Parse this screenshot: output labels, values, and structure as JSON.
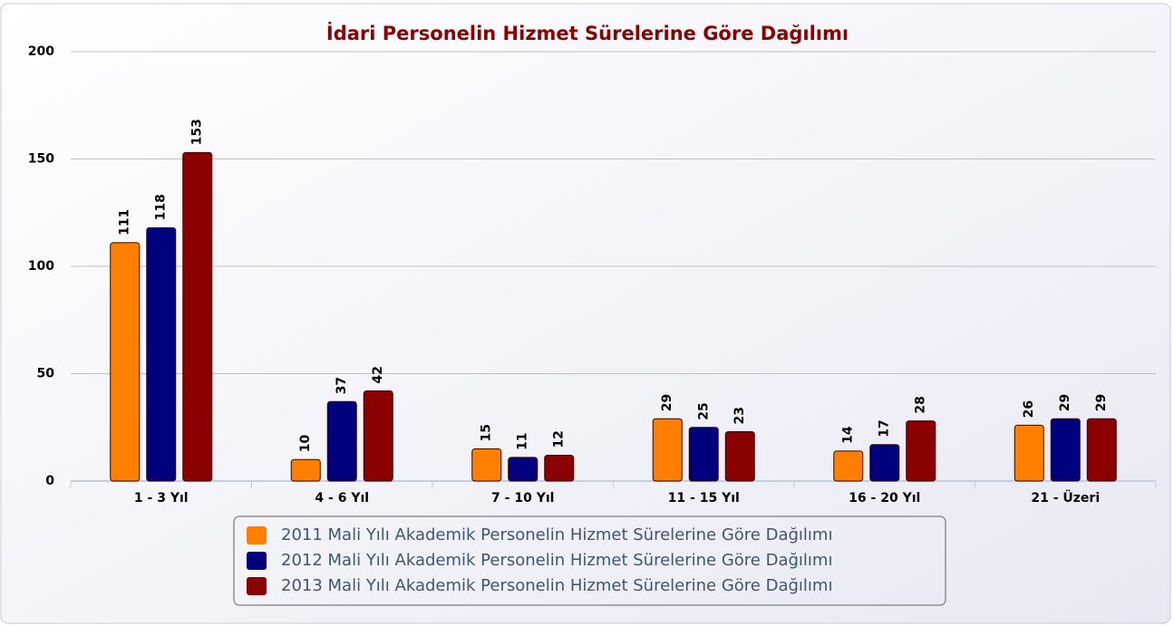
{
  "chart_data": {
    "type": "bar",
    "title": "İdari Personelin Hizmet Sürelerine Göre Dağılımı",
    "categories": [
      "1 - 3 Yıl",
      "4 - 6 Yıl",
      "7 - 10 Yıl",
      "11 - 15 Yıl",
      "16 - 20 Yıl",
      "21 - Üzeri"
    ],
    "series": [
      {
        "name": "2011 Mali Yılı Akademik Personelin Hizmet Sürelerine Göre Dağılımı",
        "color": "#ff7f00",
        "values": [
          111,
          10,
          15,
          29,
          14,
          26
        ]
      },
      {
        "name": "2012 Mali Yılı Akademik Personelin Hizmet Sürelerine Göre Dağılımı",
        "color": "#00007f",
        "values": [
          118,
          37,
          11,
          25,
          17,
          29
        ]
      },
      {
        "name": "2013 Mali Yılı Akademik Personelin Hizmet Sürelerine Göre Dağılımı",
        "color": "#8b0000",
        "values": [
          153,
          42,
          12,
          23,
          28,
          29
        ]
      }
    ],
    "ylim": [
      0,
      200
    ],
    "yticks": [
      0,
      50,
      100,
      150,
      200
    ],
    "grid": true,
    "legend": "bottom"
  }
}
